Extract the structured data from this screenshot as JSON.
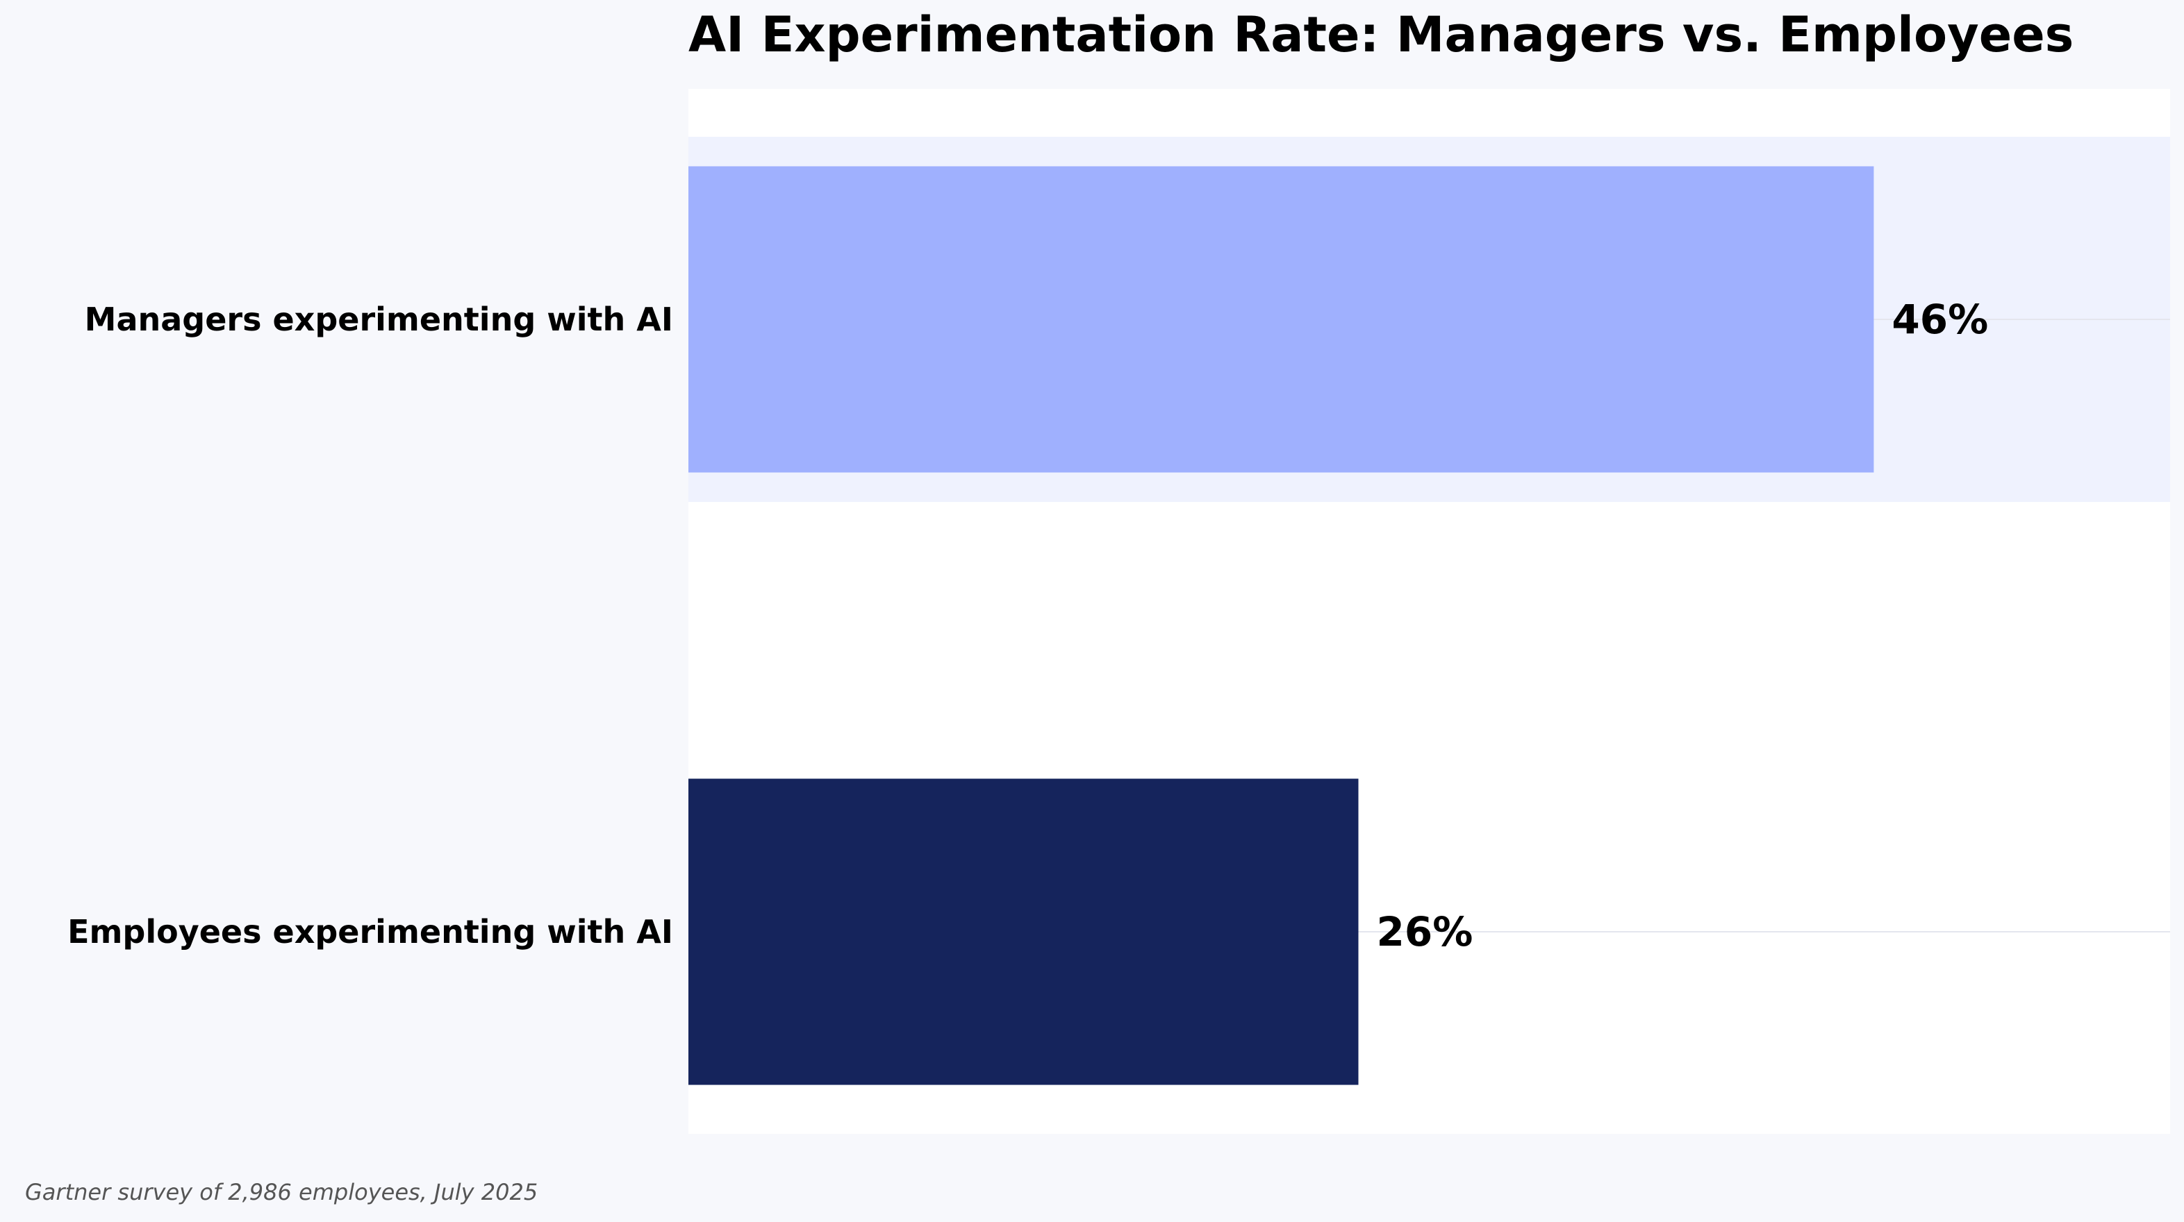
{
  "chart_data": {
    "type": "bar",
    "orientation": "horizontal",
    "title": "AI Experimentation Rate: Managers vs. Employees",
    "categories": [
      "Managers experimenting with AI",
      "Employees experimenting with AI"
    ],
    "values": [
      46,
      26
    ],
    "value_labels": [
      "46%",
      "26%"
    ],
    "xlim": [
      0,
      57.5
    ],
    "xlabel": "",
    "ylabel": "",
    "grid": false,
    "legend": "none",
    "highlighted_category": "Managers experimenting with AI",
    "colors": {
      "bars": [
        "#9fb0fe",
        "#15245c"
      ],
      "highlight_band": "#eff2fe",
      "plot_background": "#ffffff",
      "page_background": "#f7f8fc"
    }
  },
  "source_note": "Gartner survey of 2,986 employees, July 2025"
}
